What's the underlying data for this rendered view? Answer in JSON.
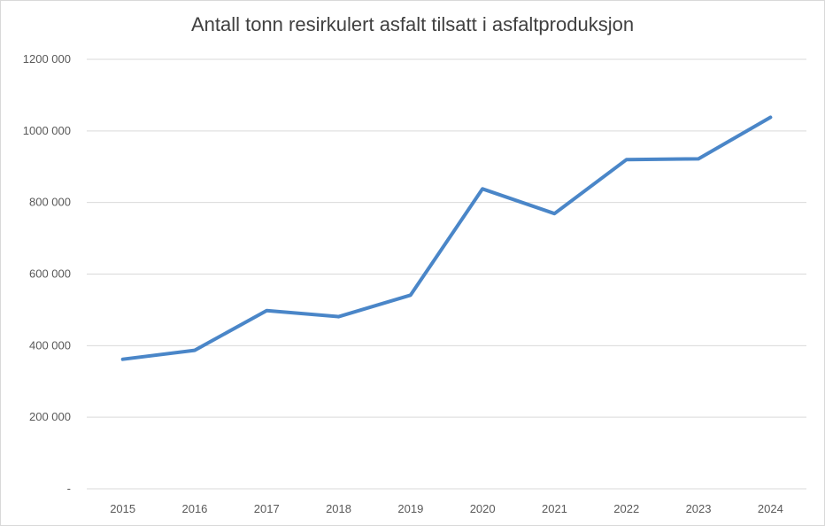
{
  "chart_data": {
    "type": "line",
    "title": "Antall tonn resirkulert asfalt tilsatt i asfaltproduksjon",
    "xlabel": "",
    "ylabel": "",
    "categories": [
      "2015",
      "2016",
      "2017",
      "2018",
      "2019",
      "2020",
      "2021",
      "2022",
      "2023",
      "2024"
    ],
    "series": [
      {
        "values": [
          362000,
          387000,
          498000,
          481000,
          541000,
          838000,
          769000,
          920000,
          922000,
          1038000
        ],
        "color": "#4a86c8"
      }
    ],
    "ylim": [
      0,
      1200000
    ],
    "yticks": [
      0,
      200000,
      400000,
      600000,
      800000,
      1000000,
      1200000
    ],
    "ytick_labels": [
      "-",
      "200 000",
      "400 000",
      "600 000",
      "800 000",
      "1000 000",
      "1200 000"
    ],
    "grid": true,
    "gridline_color": "#d9d9d9",
    "legend": "none"
  }
}
